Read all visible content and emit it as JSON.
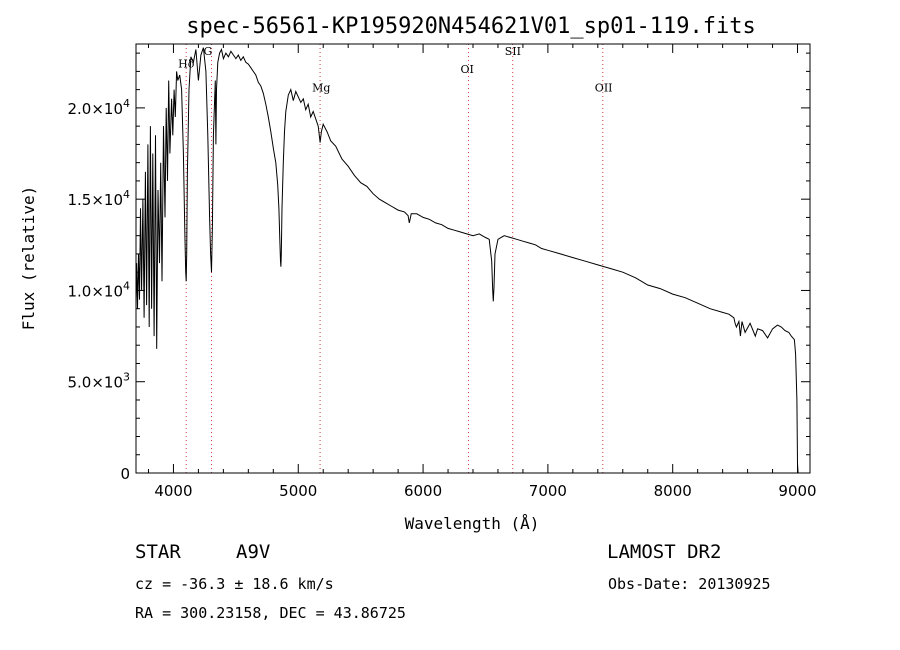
{
  "chart_data": {
    "type": "line",
    "title": "spec-56561-KP195920N454621V01_sp01-119.fits",
    "xlabel": "Wavelength (Å)",
    "ylabel": "Flux (relative)",
    "xlim": [
      3700,
      9100
    ],
    "ylim": [
      0,
      23500
    ],
    "x_ticks": [
      4000,
      5000,
      6000,
      7000,
      8000,
      9000
    ],
    "y_ticks": [
      {
        "value": 0,
        "mantissa": "0",
        "exp": ""
      },
      {
        "value": 5000,
        "mantissa": "5.0×10",
        "exp": "3"
      },
      {
        "value": 10000,
        "mantissa": "1.0×10",
        "exp": "4"
      },
      {
        "value": 15000,
        "mantissa": "1.5×10",
        "exp": "4"
      },
      {
        "value": 20000,
        "mantissa": "2.0×10",
        "exp": "4"
      }
    ],
    "lines": [
      {
        "label": "Hδ",
        "x": 4102,
        "label_y": 22200
      },
      {
        "label": "G",
        "x": 4305,
        "label_y": 22900
      },
      {
        "label": "Mg",
        "x": 5175,
        "label_y": 20900
      },
      {
        "label": "OI",
        "x": 6364,
        "label_y": 21900
      },
      {
        "label": "SII",
        "x": 6718,
        "label_y": 22900
      },
      {
        "label": "OII",
        "x": 7440,
        "label_y": 20900
      }
    ],
    "series": [
      {
        "x": [
          3700,
          3705,
          3712,
          3720,
          3728,
          3736,
          3745,
          3755,
          3765,
          3775,
          3785,
          3795,
          3806,
          3815,
          3825,
          3835,
          3845,
          3856,
          3866,
          3876,
          3888,
          3898,
          3908,
          3920,
          3932,
          3942,
          3952,
          3962,
          3972,
          3985,
          3995,
          4005,
          4015,
          4025,
          4035,
          4050,
          4065,
          4080,
          4092,
          4098,
          4102,
          4106,
          4112,
          4125,
          4140,
          4160,
          4180,
          4200,
          4220,
          4240,
          4260,
          4275,
          4290,
          4298,
          4305,
          4312,
          4320,
          4335,
          4340,
          4345,
          4355,
          4370,
          4385,
          4400,
          4420,
          4440,
          4460,
          4480,
          4500,
          4520,
          4540,
          4560,
          4580,
          4600,
          4620,
          4640,
          4660,
          4680,
          4700,
          4720,
          4740,
          4760,
          4780,
          4800,
          4820,
          4835,
          4845,
          4852,
          4858,
          4861,
          4864,
          4870,
          4880,
          4890,
          4900,
          4920,
          4940,
          4960,
          4980,
          5000,
          5020,
          5040,
          5060,
          5080,
          5100,
          5120,
          5140,
          5160,
          5170,
          5175,
          5185,
          5200,
          5230,
          5260,
          5300,
          5350,
          5400,
          5450,
          5500,
          5550,
          5600,
          5650,
          5700,
          5750,
          5800,
          5850,
          5880,
          5890,
          5896,
          5905,
          5950,
          6000,
          6050,
          6100,
          6150,
          6200,
          6250,
          6300,
          6350,
          6400,
          6450,
          6500,
          6530,
          6550,
          6558,
          6563,
          6568,
          6576,
          6600,
          6650,
          6700,
          6750,
          6800,
          6850,
          6900,
          6950,
          7000,
          7100,
          7200,
          7300,
          7400,
          7500,
          7600,
          7700,
          7750,
          7800,
          7900,
          8000,
          8100,
          8200,
          8300,
          8400,
          8450,
          8490,
          8500,
          8510,
          8530,
          8542,
          8555,
          8580,
          8620,
          8662,
          8680,
          8720,
          8760,
          8800,
          8840,
          8870,
          8900,
          8930,
          8950,
          8975,
          8985,
          8995,
          9000,
          9005
        ],
        "y": [
          9500,
          11500,
          9000,
          12000,
          9500,
          14500,
          10000,
          15000,
          8500,
          16500,
          9200,
          18000,
          8000,
          19000,
          9000,
          17500,
          7500,
          18500,
          6800,
          15500,
          11500,
          17000,
          10500,
          19000,
          14000,
          20000,
          16000,
          21500,
          17500,
          20500,
          18500,
          21000,
          19500,
          22000,
          21500,
          21800,
          21000,
          17500,
          13000,
          11000,
          10500,
          12000,
          16500,
          21000,
          22800,
          22500,
          23200,
          21500,
          22900,
          23300,
          22000,
          18500,
          14000,
          12000,
          11000,
          13500,
          18500,
          21500,
          18000,
          21000,
          22500,
          23000,
          23200,
          22700,
          23000,
          22800,
          23100,
          22900,
          22700,
          22900,
          22600,
          22800,
          22500,
          22400,
          22200,
          22000,
          21800,
          21400,
          21200,
          20800,
          20200,
          19500,
          18700,
          17800,
          17000,
          15800,
          14500,
          12800,
          11600,
          11300,
          12000,
          14500,
          17000,
          18700,
          19800,
          20700,
          21000,
          20400,
          20900,
          20600,
          20300,
          20500,
          19900,
          20200,
          19500,
          19800,
          19400,
          19000,
          18400,
          18100,
          18700,
          19100,
          18700,
          18200,
          17900,
          17200,
          16800,
          16300,
          15900,
          15700,
          15300,
          15000,
          14800,
          14600,
          14400,
          14300,
          14100,
          13700,
          13900,
          14200,
          14200,
          14000,
          13900,
          13700,
          13600,
          13400,
          13300,
          13200,
          13100,
          13000,
          13100,
          12900,
          12800,
          11600,
          10000,
          9400,
          10200,
          12000,
          12800,
          13000,
          12900,
          12800,
          12700,
          12600,
          12500,
          12300,
          12200,
          12000,
          11800,
          11600,
          11400,
          11200,
          11000,
          10700,
          10500,
          10300,
          10100,
          9800,
          9600,
          9300,
          9000,
          8800,
          8700,
          8500,
          8200,
          8000,
          8300,
          7500,
          8300,
          7700,
          8200,
          7500,
          7900,
          7800,
          7400,
          7900,
          8100,
          8000,
          7800,
          7700,
          7500,
          7300,
          6500,
          4000,
          500,
          0
        ]
      }
    ]
  },
  "info": {
    "object_class": "STAR",
    "subclass": "A9V",
    "survey": "LAMOST DR2",
    "cz": "cz = -36.3 ± 18.6 km/s",
    "obs_date": "Obs-Date: 20130925",
    "radec": "RA = 300.23158, DEC =  43.86725"
  }
}
